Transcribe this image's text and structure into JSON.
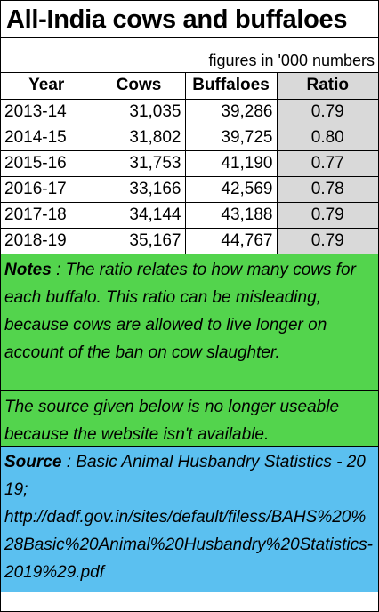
{
  "title": "All-India cows and buffaloes",
  "subtitle": "figures in '000 numbers",
  "table": {
    "headers": [
      "Year",
      "Cows",
      "Buffaloes",
      "Ratio"
    ],
    "rows": [
      [
        "2013-14",
        "31,035",
        "39,286",
        "0.79"
      ],
      [
        "2014-15",
        "31,802",
        "39,725",
        "0.80"
      ],
      [
        "2015-16",
        "31,753",
        "41,190",
        "0.77"
      ],
      [
        "2016-17",
        "33,166",
        "42,569",
        "0.78"
      ],
      [
        "2017-18",
        "34,144",
        "43,188",
        "0.79"
      ],
      [
        "2018-19",
        "35,167",
        "44,767",
        "0.79"
      ]
    ]
  },
  "notes": {
    "label": "Notes",
    "sep": " : ",
    "text": "The ratio relates to how many cows for each buffalo. This ratio can be misleading, because cows are allowed to live longer on account of the ban on cow slaughter.",
    "text2": "The source given below is no longer useable because the website isn't available."
  },
  "source": {
    "label": "Source",
    "sep": " :  ",
    "text": "Basic Animal Husbandry Statistics - 2019;",
    "url": "http://dadf.gov.in/sites/default/filess/BAHS%20%28Basic%20Animal%20Husbandry%20Statistics-2019%29.pdf"
  },
  "colors": {
    "notes_bg": "#53d44d",
    "source_bg": "#5bc0f0",
    "ratio_bg": "#d9d9d9"
  }
}
